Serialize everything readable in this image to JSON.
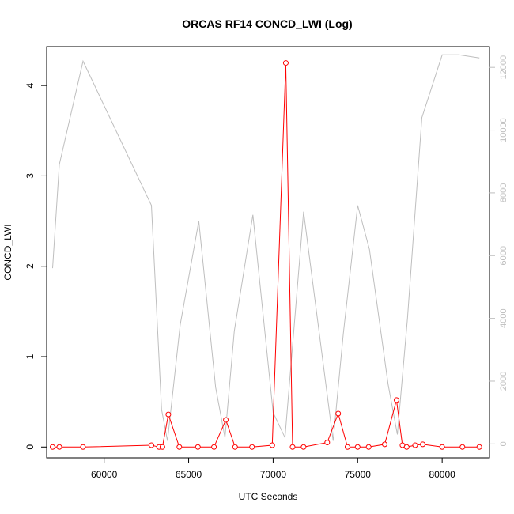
{
  "chart_data": {
    "type": "line",
    "title": "ORCAS RF14 CONCD_LWI (Log)",
    "xlabel": "UTC Seconds",
    "ylabel": "CONCD_LWI",
    "xlim": [
      56600,
      82800
    ],
    "ylim": [
      -0.12,
      4.43
    ],
    "ylim_right": [
      -445,
      12660
    ],
    "x_ticks": [
      60000,
      65000,
      70000,
      75000,
      80000
    ],
    "y_ticks": [
      0,
      1,
      2,
      3,
      4
    ],
    "y_ticks_right": [
      0,
      2000,
      4000,
      6000,
      8000,
      10000,
      12000
    ],
    "grid": false,
    "legend": "none",
    "series": [
      {
        "axis": "left",
        "color": "#ff0000",
        "marker": "circle",
        "x": [
          56950,
          57350,
          58750,
          62800,
          63250,
          63450,
          63800,
          64450,
          65550,
          66500,
          67200,
          67750,
          68750,
          69950,
          70750,
          71150,
          71800,
          73200,
          73850,
          74400,
          75000,
          75650,
          76600,
          77300,
          77650,
          77900,
          78400,
          78850,
          80000,
          81200,
          82200
        ],
        "y": [
          0.0,
          0.0,
          0.0,
          0.02,
          0.0,
          0.0,
          0.36,
          0.0,
          0.0,
          0.0,
          0.3,
          0.0,
          0.0,
          0.02,
          4.25,
          0.0,
          0.0,
          0.05,
          0.37,
          0.0,
          0.0,
          0.0,
          0.03,
          0.52,
          0.02,
          0.0,
          0.02,
          0.03,
          0.0,
          0.0,
          0.0
        ]
      },
      {
        "axis": "right",
        "color": "#bebebe",
        "marker": "none",
        "x": [
          56950,
          57350,
          58750,
          62800,
          63400,
          63750,
          64500,
          65600,
          66600,
          67150,
          67700,
          68800,
          70000,
          70700,
          71800,
          73550,
          74150,
          75000,
          75700,
          76800,
          77350,
          77950,
          78800,
          80000,
          81000,
          82200
        ],
        "y": [
          5600,
          8900,
          12200,
          7600,
          1100,
          100,
          3800,
          7100,
          1800,
          200,
          3600,
          7300,
          1000,
          200,
          7400,
          100,
          3500,
          7600,
          6200,
          1900,
          300,
          4000,
          10400,
          12400,
          12400,
          12300
        ]
      }
    ]
  }
}
